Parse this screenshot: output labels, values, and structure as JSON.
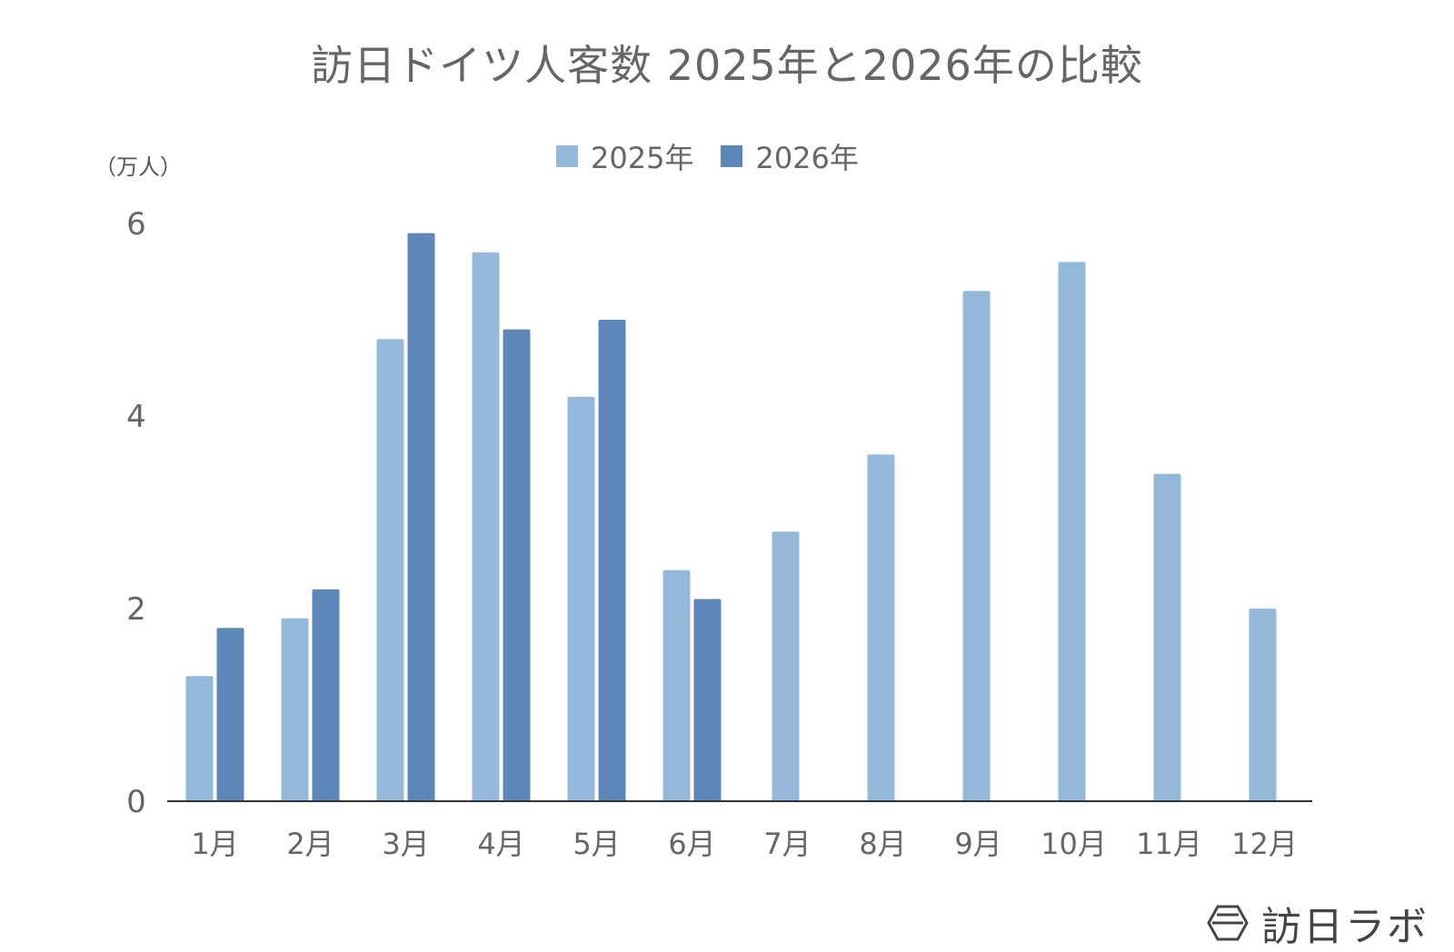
{
  "chart_data": {
    "type": "bar",
    "title": "訪日ドイツ人客数 2025年と2026年の比較",
    "unit_label": "（万人）",
    "categories": [
      "1月",
      "2月",
      "3月",
      "4月",
      "5月",
      "6月",
      "7月",
      "8月",
      "9月",
      "10月",
      "11月",
      "12月"
    ],
    "series": [
      {
        "name": "2025年",
        "color": "#94b8da",
        "values": [
          1.3,
          1.9,
          4.8,
          5.7,
          4.2,
          2.4,
          2.8,
          3.6,
          5.3,
          5.6,
          3.4,
          2.0
        ]
      },
      {
        "name": "2026年",
        "color": "#5d87b8",
        "values": [
          1.8,
          2.2,
          5.9,
          4.9,
          5.0,
          2.1,
          null,
          null,
          null,
          null,
          null,
          null
        ]
      }
    ],
    "yticks": [
      0,
      2,
      4,
      6
    ],
    "ylim": [
      0,
      6
    ],
    "grid": false,
    "legend_position": "top-center"
  },
  "watermark": {
    "text": "訪日ラボ",
    "icon": "hexagon-logo-icon"
  }
}
